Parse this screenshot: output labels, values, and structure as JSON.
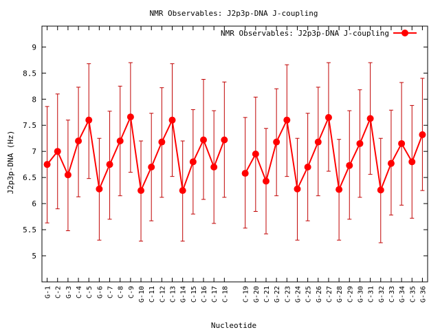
{
  "chart_data": {
    "type": "line",
    "title": "NMR Observables: J2p3p-DNA J-coupling",
    "xlabel": "Nucleotide",
    "ylabel": "J2p3p-DNA (Hz)",
    "ylim": [
      4.5,
      9.4
    ],
    "yticks": [
      "5",
      "5.5",
      "6",
      "6.5",
      "7",
      "7.5",
      "8",
      "8.5",
      "9"
    ],
    "grid": false,
    "legend_position": "top-right",
    "series_color": "#ff0000",
    "errorbar_color": "#c00000",
    "series": [
      {
        "name": "NMR Observables: J2p3p-DNA J-coupling",
        "segments": [
          {
            "categories": [
              "G-1",
              "C-2",
              "G-3",
              "C-4",
              "C-5",
              "G-6",
              "C-7",
              "C-8",
              "C-9",
              "G-10",
              "C-11",
              "C-12",
              "C-13",
              "G-14",
              "C-15",
              "C-16",
              "C-17",
              "C-18"
            ],
            "values": [
              6.75,
              7.0,
              6.55,
              7.2,
              7.6,
              6.28,
              6.75,
              7.2,
              7.66,
              6.25,
              6.7,
              7.18,
              7.6,
              6.25,
              6.8,
              7.22,
              6.7,
              7.22
            ],
            "err_low": [
              5.63,
              5.9,
              5.48,
              6.13,
              6.48,
              5.3,
              5.7,
              6.15,
              6.6,
              5.28,
              5.67,
              6.12,
              6.52,
              5.28,
              5.8,
              6.08,
              5.62,
              6.12
            ],
            "err_high": [
              7.86,
              8.1,
              7.6,
              8.23,
              8.68,
              7.25,
              7.77,
              8.25,
              8.7,
              7.2,
              7.73,
              8.22,
              8.68,
              7.2,
              7.8,
              8.38,
              7.78,
              8.33
            ]
          },
          {
            "categories": [
              "C-19",
              "G-20",
              "C-21",
              "G-22",
              "C-23",
              "G-24",
              "C-25",
              "G-26",
              "C-27",
              "G-28",
              "C-29",
              "G-30",
              "C-31",
              "G-32",
              "C-33",
              "G-34",
              "C-35",
              "G-36"
            ],
            "values": [
              6.58,
              6.95,
              6.43,
              7.18,
              7.6,
              6.28,
              6.7,
              7.18,
              7.65,
              6.27,
              6.73,
              7.15,
              7.63,
              6.26,
              6.77,
              7.15,
              6.8,
              7.32
            ],
            "err_low": [
              5.53,
              5.85,
              5.42,
              6.15,
              6.52,
              5.3,
              5.67,
              6.15,
              6.62,
              5.3,
              5.7,
              6.12,
              6.56,
              5.25,
              5.78,
              5.97,
              5.72,
              6.25
            ],
            "err_high": [
              7.65,
              8.04,
              7.44,
              8.2,
              8.66,
              7.25,
              7.73,
              8.23,
              8.7,
              7.23,
              7.78,
              8.18,
              8.7,
              7.25,
              7.79,
              8.32,
              7.88,
              8.4
            ]
          }
        ]
      }
    ]
  }
}
